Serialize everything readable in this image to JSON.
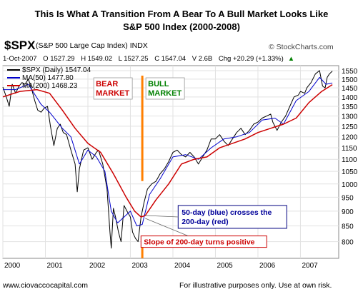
{
  "header": {
    "title_line1": "This Is What A Transition From A Bear To A Bull Market Looks Like",
    "title_line2": "S&P 500 Index (2000-2008)",
    "symbol": "$SPX",
    "symbol_desc": "(S&P 500 Large Cap Index) INDX",
    "watermark": "© StockCharts.com",
    "date": "1-Oct-2007",
    "open": "O 1527.29",
    "high": "H 1549.02",
    "low": "L 1527.25",
    "close": "C 1547.04",
    "volume": "V 2.6B",
    "change": "Chg +20.29 (+1.33%)",
    "change_arrow": "▲"
  },
  "footer": {
    "site": "www.ciovaccocapital.com",
    "disclaimer": "For illustrative purposes only.  Use at own risk."
  },
  "chart_data": {
    "type": "line",
    "x_ticks": [
      "2000",
      "2001",
      "2002",
      "2003",
      "2004",
      "2005",
      "2006",
      "2007"
    ],
    "y_ticks": [
      800,
      850,
      900,
      950,
      1000,
      1050,
      1100,
      1150,
      1200,
      1250,
      1300,
      1350,
      1400,
      1450,
      1500,
      1550
    ],
    "xlim": [
      2000.0,
      2007.9
    ],
    "ylim": [
      750,
      1580
    ],
    "y_scale": "log",
    "grid": true,
    "legend": "top-left",
    "colors": {
      "price": "#000000",
      "ma50": "#0000cc",
      "ma200": "#cc0000",
      "divider": "#ff7f00",
      "bear": "#cc0000",
      "bull": "#008000",
      "callout_border": "#000080",
      "callout_text": "#000099"
    },
    "legend_entries": [
      {
        "marker": "black",
        "label": "$SPX (Daily) 1547.04"
      },
      {
        "marker": "blue",
        "label": "MA(50) 1477.80"
      },
      {
        "marker": "red",
        "label": "MA(200) 1468.23"
      }
    ],
    "series": [
      {
        "label": "$SPX (Daily) 1547.04",
        "x": [
          2000.0,
          2000.08,
          2000.15,
          2000.22,
          2000.3,
          2000.38,
          2000.45,
          2000.52,
          2000.6,
          2000.68,
          2000.75,
          2000.82,
          2000.9,
          2000.97,
          2001.05,
          2001.12,
          2001.2,
          2001.28,
          2001.35,
          2001.42,
          2001.5,
          2001.6,
          2001.7,
          2001.75,
          2001.8,
          2001.9,
          2002.0,
          2002.1,
          2002.2,
          2002.25,
          2002.35,
          2002.45,
          2002.52,
          2002.55,
          2002.6,
          2002.65,
          2002.72,
          2002.78,
          2002.85,
          2002.92,
          2003.0,
          2003.05,
          2003.12,
          2003.18,
          2003.25,
          2003.32,
          2003.4,
          2003.5,
          2003.6,
          2003.7,
          2003.8,
          2003.9,
          2004.0,
          2004.1,
          2004.2,
          2004.3,
          2004.4,
          2004.5,
          2004.6,
          2004.7,
          2004.8,
          2004.9,
          2005.0,
          2005.1,
          2005.2,
          2005.3,
          2005.4,
          2005.5,
          2005.6,
          2005.7,
          2005.8,
          2005.9,
          2006.0,
          2006.1,
          2006.2,
          2006.3,
          2006.35,
          2006.45,
          2006.55,
          2006.65,
          2006.75,
          2006.85,
          2006.95,
          2007.0,
          2007.1,
          2007.15,
          2007.25,
          2007.35,
          2007.45,
          2007.52,
          2007.58,
          2007.63,
          2007.68,
          2007.75
        ],
        "y": [
          1455,
          1400,
          1350,
          1470,
          1420,
          1460,
          1480,
          1470,
          1500,
          1440,
          1380,
          1330,
          1320,
          1340,
          1350,
          1250,
          1160,
          1240,
          1260,
          1220,
          1210,
          1140,
          1080,
          970,
          1060,
          1140,
          1150,
          1100,
          1130,
          1140,
          1080,
          980,
          830,
          780,
          910,
          880,
          830,
          800,
          920,
          900,
          880,
          830,
          810,
          800,
          880,
          930,
          980,
          1000,
          1010,
          1040,
          1060,
          1090,
          1130,
          1140,
          1120,
          1110,
          1130,
          1110,
          1080,
          1110,
          1140,
          1190,
          1190,
          1210,
          1180,
          1160,
          1190,
          1220,
          1240,
          1210,
          1230,
          1260,
          1270,
          1290,
          1300,
          1310,
          1270,
          1230,
          1270,
          1300,
          1350,
          1400,
          1410,
          1430,
          1420,
          1450,
          1480,
          1530,
          1550,
          1460,
          1450,
          1510,
          1530,
          1547
        ]
      },
      {
        "label": "MA(50) 1477.80",
        "x": [
          2000.0,
          2000.3,
          2000.6,
          2000.9,
          2001.1,
          2001.4,
          2001.6,
          2001.8,
          2002.0,
          2002.2,
          2002.4,
          2002.55,
          2002.7,
          2002.85,
          2003.0,
          2003.15,
          2003.28,
          2003.45,
          2003.7,
          2004.0,
          2004.3,
          2004.6,
          2004.9,
          2005.2,
          2005.5,
          2005.8,
          2006.1,
          2006.4,
          2006.6,
          2006.9,
          2007.2,
          2007.45,
          2007.6,
          2007.75
        ],
        "y": [
          1440,
          1440,
          1470,
          1360,
          1320,
          1240,
          1200,
          1080,
          1140,
          1110,
          1050,
          900,
          860,
          880,
          900,
          850,
          855,
          960,
          1020,
          1110,
          1120,
          1100,
          1150,
          1190,
          1200,
          1220,
          1280,
          1290,
          1260,
          1380,
          1430,
          1510,
          1470,
          1478
        ]
      },
      {
        "label": "MA(200) 1468.23",
        "x": [
          2000.0,
          2000.4,
          2000.8,
          2001.1,
          2001.4,
          2001.7,
          2002.0,
          2002.3,
          2002.6,
          2002.9,
          2003.1,
          2003.25,
          2003.35,
          2003.6,
          2003.9,
          2004.2,
          2004.5,
          2004.8,
          2005.1,
          2005.4,
          2005.7,
          2006.0,
          2006.3,
          2006.6,
          2006.9,
          2007.2,
          2007.5,
          2007.75
        ],
        "y": [
          1400,
          1430,
          1440,
          1420,
          1330,
          1240,
          1170,
          1130,
          1040,
          950,
          900,
          880,
          885,
          940,
          1000,
          1080,
          1100,
          1110,
          1150,
          1170,
          1190,
          1220,
          1240,
          1260,
          1290,
          1370,
          1430,
          1468
        ]
      }
    ],
    "annotations": {
      "bear": [
        "BEAR",
        "MARKET"
      ],
      "bull": [
        "BULL",
        "MARKET"
      ],
      "divider_x": 2003.28,
      "crossover": {
        "x": 2003.35,
        "y": 885
      },
      "callout_blue": [
        "50-day (blue) crosses the",
        "200-day (red)"
      ],
      "callout_red": "Slope of 200-day turns positive"
    }
  }
}
